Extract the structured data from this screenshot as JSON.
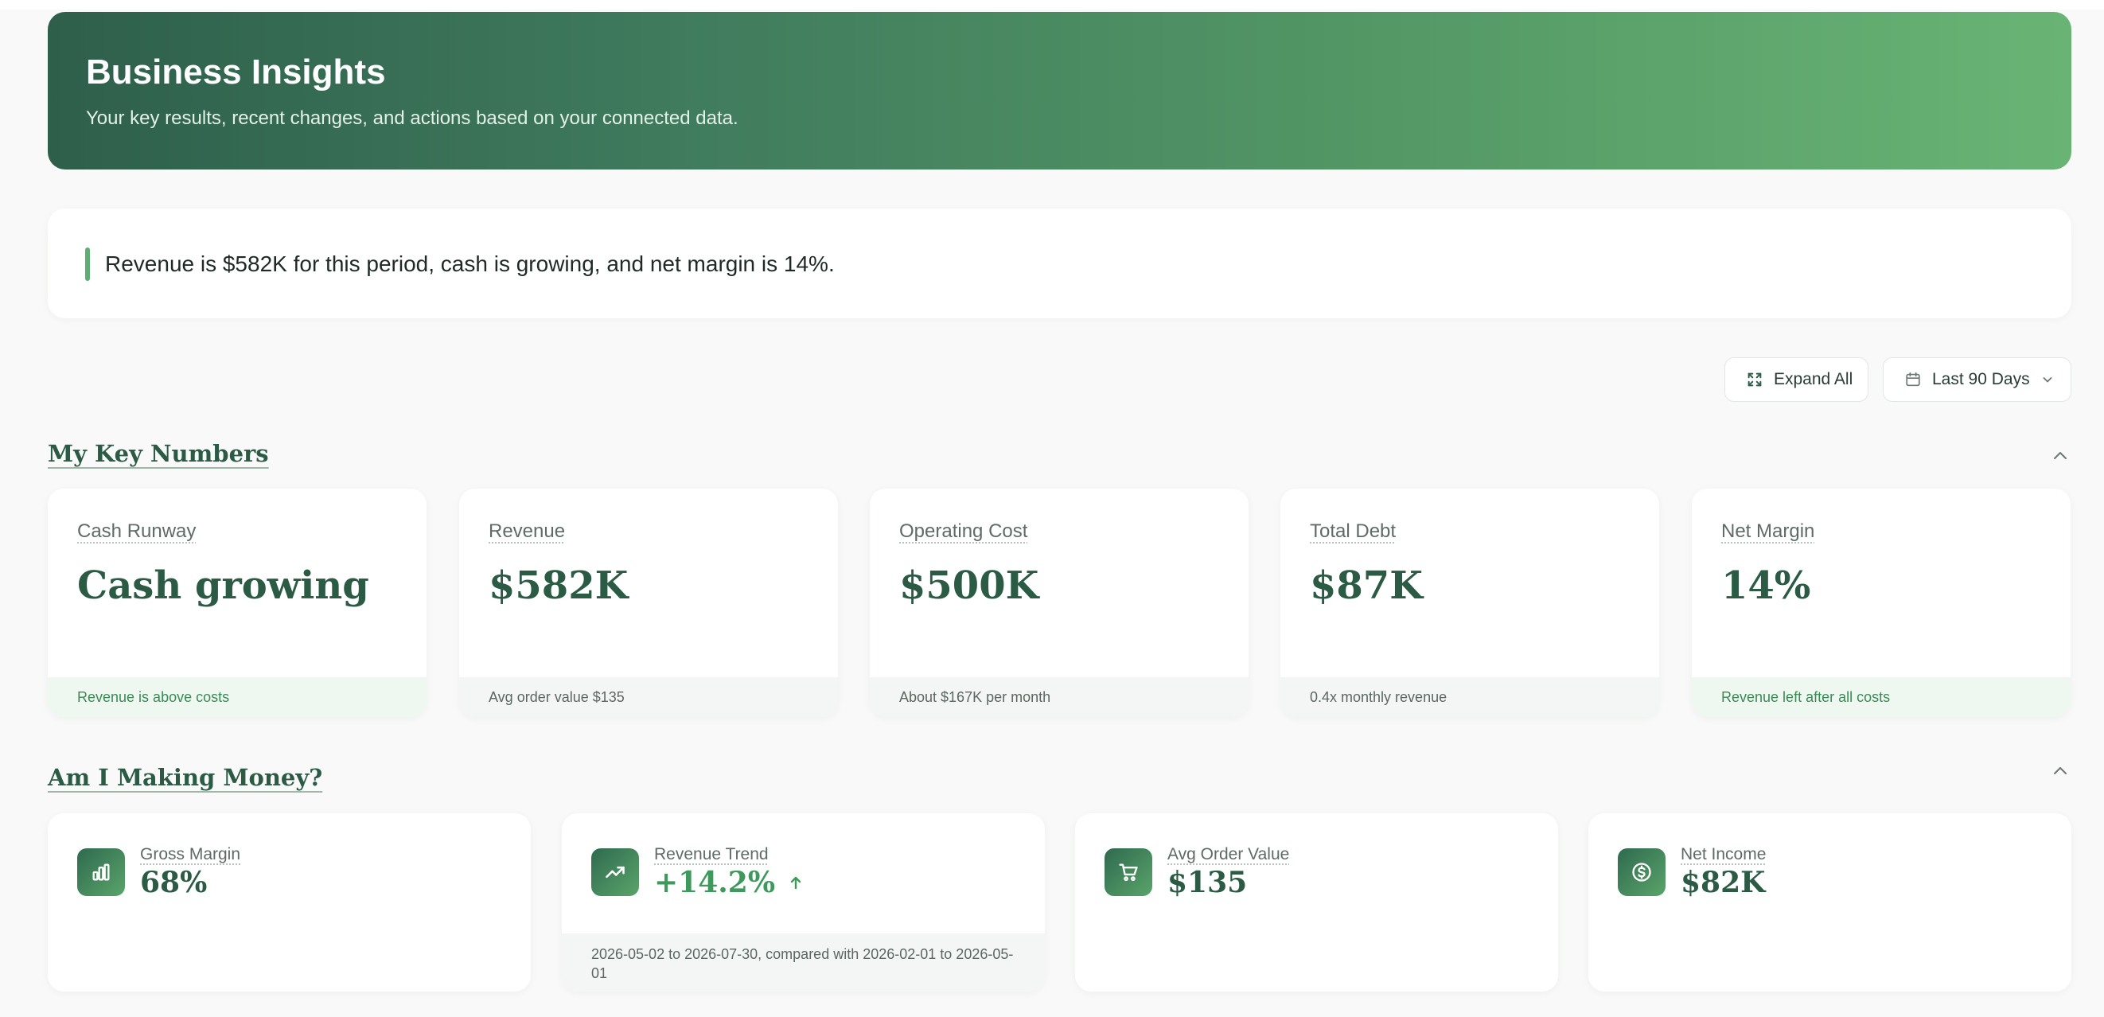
{
  "header": {
    "title": "Business Insights",
    "subtitle": "Your key results, recent changes, and actions based on your connected data."
  },
  "summary": {
    "text": "Revenue is $582K for this period, cash is growing, and net margin is 14%."
  },
  "toolbar": {
    "expand_label": "Expand All",
    "range_label": "Last 90 Days"
  },
  "sections": {
    "key_numbers": {
      "title": "My Key Numbers",
      "cards": [
        {
          "label": "Cash Runway",
          "value": "Cash growing",
          "footnote": "Revenue is above costs",
          "tone": "good"
        },
        {
          "label": "Revenue",
          "value": "$582K",
          "footnote": "Avg order value $135",
          "tone": "neutral"
        },
        {
          "label": "Operating Cost",
          "value": "$500K",
          "footnote": "About $167K per month",
          "tone": "neutral"
        },
        {
          "label": "Total Debt",
          "value": "$87K",
          "footnote": "0.4x monthly revenue",
          "tone": "neutral"
        },
        {
          "label": "Net Margin",
          "value": "14%",
          "footnote": "Revenue left after all costs",
          "tone": "good"
        }
      ]
    },
    "making_money": {
      "title": "Am I Making Money?",
      "cards": [
        {
          "label": "Gross Margin",
          "value": "68%",
          "icon": "bar-chart-icon"
        },
        {
          "label": "Revenue Trend",
          "value": "+14.2%",
          "icon": "trending-up-icon",
          "footnote": "2026-05-02 to 2026-07-30, compared with 2026-02-01 to 2026-05-01"
        },
        {
          "label": "Avg Order Value",
          "value": "$135",
          "icon": "shopping-cart-icon"
        },
        {
          "label": "Net Income",
          "value": "$82K",
          "icon": "dollar-circle-icon"
        }
      ]
    }
  },
  "colors": {
    "brand_dark": "#2e5f4b",
    "brand_light": "#69b475",
    "accent_text": "#2b5a45",
    "positive": "#3e9a5c"
  }
}
